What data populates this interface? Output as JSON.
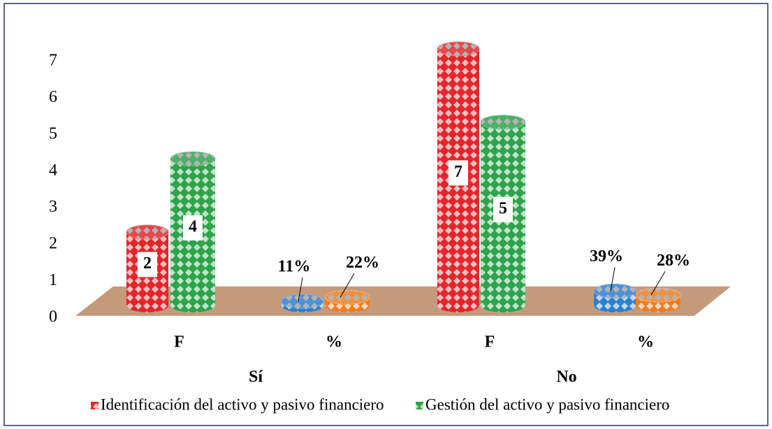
{
  "chart_data": {
    "type": "bar3d",
    "categories": [
      "F",
      "%",
      "F",
      "%"
    ],
    "groups": [
      "Sí",
      "No"
    ],
    "series": [
      {
        "name": "Identificación del activo y pasivo financiero",
        "color": "#e3262b",
        "point_colors": [
          "#e3262b",
          "#2f7fcf",
          "#e3262b",
          "#2f7fcf"
        ],
        "values": [
          2,
          0.11,
          7,
          0.39
        ],
        "value_labels": [
          "2",
          "11%",
          "7",
          "39%"
        ]
      },
      {
        "name": "Gestión del activo y pasivo financiero",
        "color": "#2ea24c",
        "point_colors": [
          "#2ea24c",
          "#ef7d1f",
          "#2ea24c",
          "#ef7d1f"
        ],
        "values": [
          4,
          0.22,
          5,
          0.28
        ],
        "value_labels": [
          "4",
          "22%",
          "5",
          "28%"
        ]
      }
    ],
    "ylim": [
      0,
      7
    ],
    "yticks": [
      0,
      1,
      2,
      3,
      4,
      5,
      6,
      7
    ],
    "legend": "bottom"
  }
}
